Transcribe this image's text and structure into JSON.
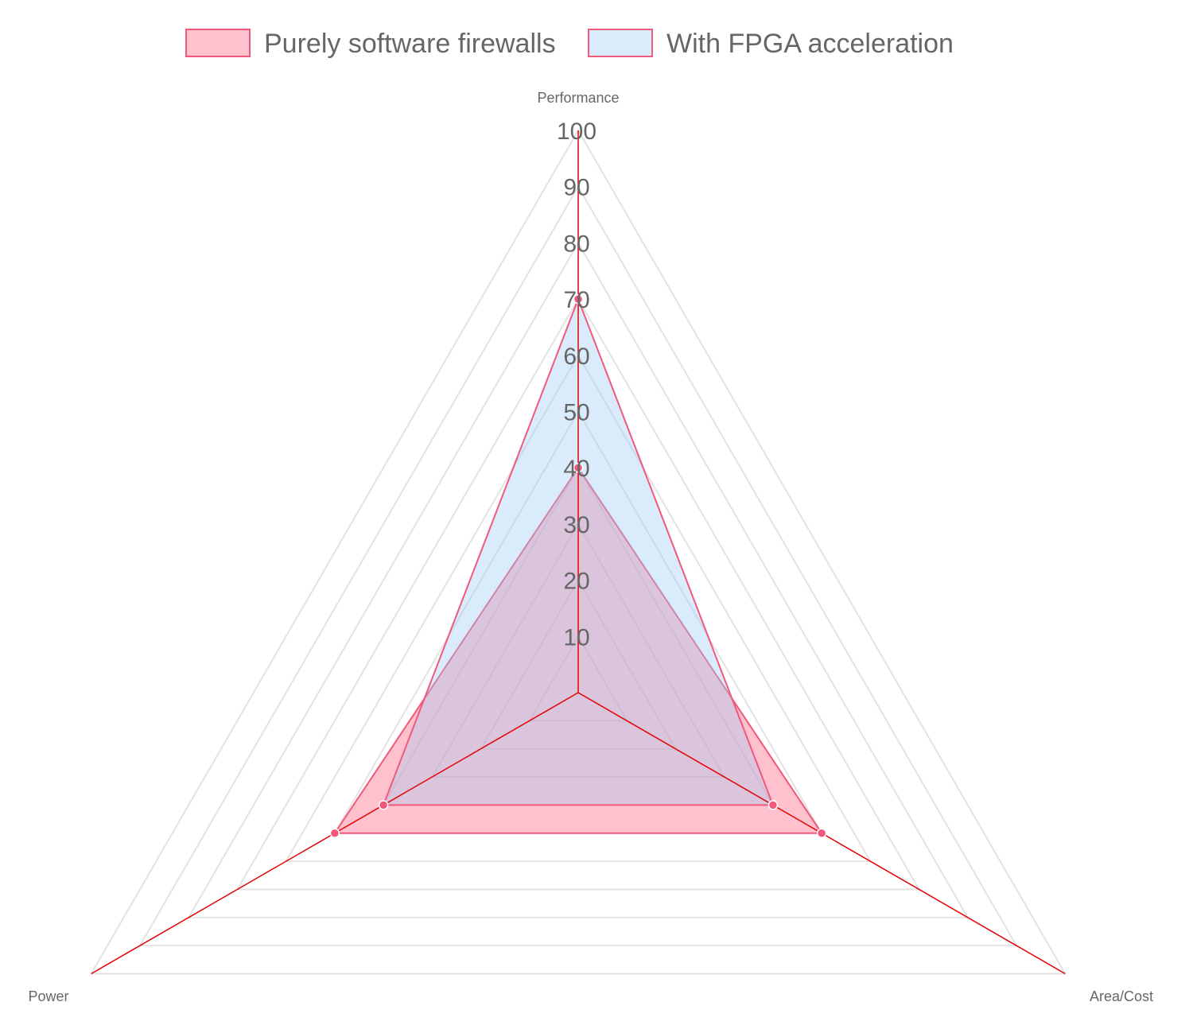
{
  "chart_data": {
    "type": "radar",
    "axes": [
      "Performance",
      "Area/Cost",
      "Power"
    ],
    "r_range": [
      0,
      100
    ],
    "ticks": [
      10,
      20,
      30,
      40,
      50,
      60,
      70,
      80,
      90,
      100
    ],
    "legend_position": "top",
    "grid": true,
    "series": [
      {
        "name": "Purely software firewalls",
        "values": [
          40,
          50,
          50
        ],
        "fill": "#ff6384",
        "fill_opacity": 0.4,
        "stroke": "#f0587c"
      },
      {
        "name": "With FPGA acceleration",
        "values": [
          70,
          40,
          40
        ],
        "fill": "#9ecef5",
        "fill_opacity": 0.38,
        "stroke": "#f0587c"
      }
    ],
    "colors": {
      "grid": "#e3e3e3",
      "axis_line": "#e60000",
      "point": "#f0587c",
      "text": "#666666"
    }
  }
}
